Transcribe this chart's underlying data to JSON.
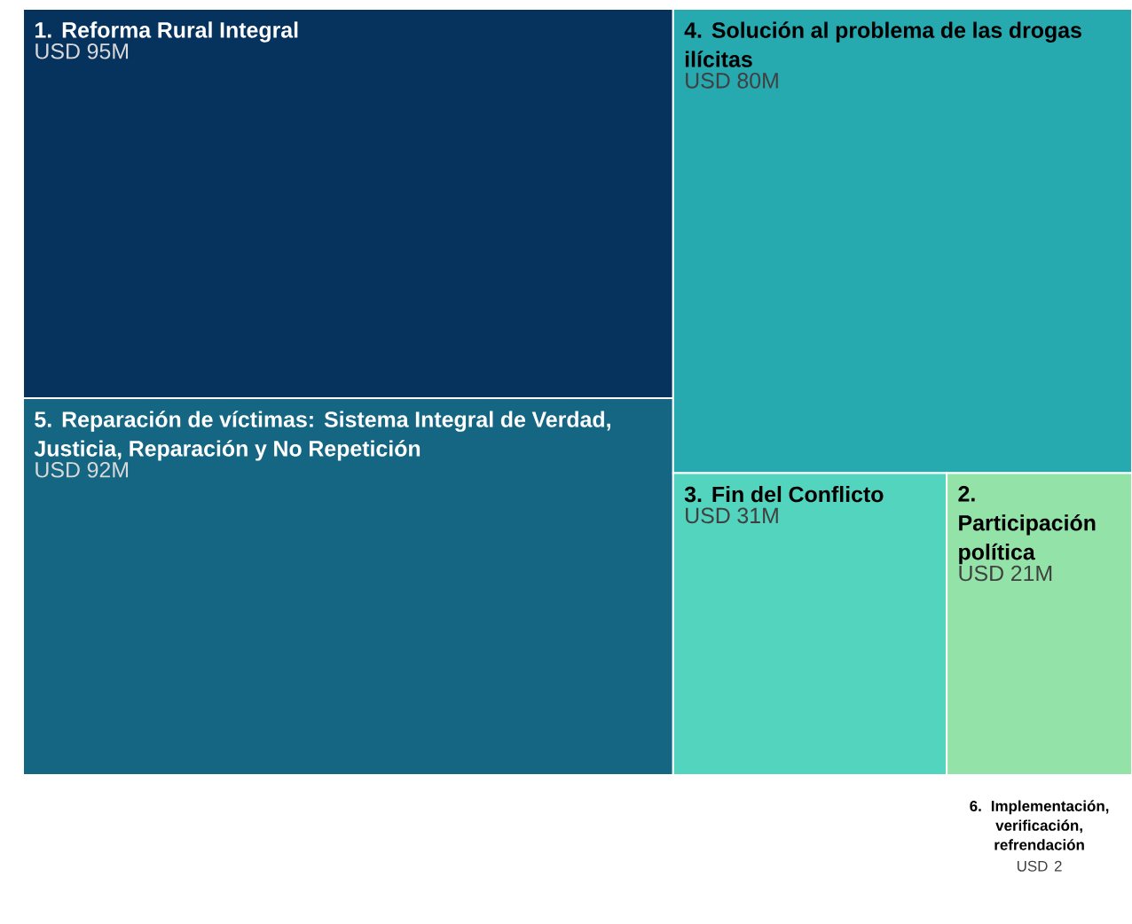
{
  "chart_data": {
    "type": "other",
    "categories": [
      "1. Reforma Rural Integral",
      "5. Reparación de víctimas: Sistema Integral de Verdad, Justicia, Reparación y No Repetición",
      "4. Solución al problema de las drogas ilícitas",
      "3. Fin del Conflicto",
      "2. Participación política",
      "6. Implementación, verificación, refrendación"
    ],
    "values": [
      95000000,
      92000000,
      80000000,
      31000000,
      21000000,
      2
    ],
    "value_labels": [
      "USD 95M",
      "USD 92M",
      "USD 80M",
      "USD 31M",
      "USD 21M",
      "USD 2"
    ],
    "colors": [
      "#06335e",
      "#146683",
      "#27a9b0",
      "#52d4be",
      "#93e3a8",
      "#cfef91"
    ]
  }
}
